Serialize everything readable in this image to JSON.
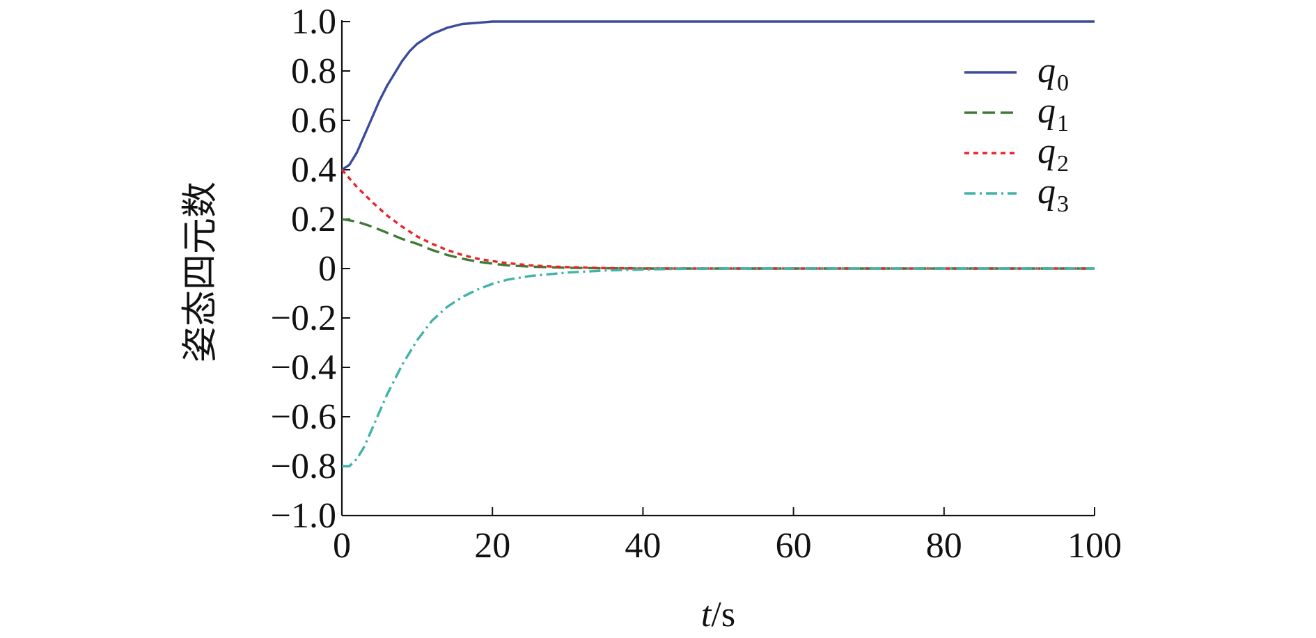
{
  "chart_data": {
    "type": "line",
    "title": "",
    "xlabel_italic": "t",
    "xlabel_rest": "/s",
    "ylabel": "姿态四元数",
    "xlim": [
      0,
      100
    ],
    "ylim": [
      -1.0,
      1.0
    ],
    "x_ticks": [
      0,
      20,
      40,
      60,
      80,
      100
    ],
    "x_tick_labels": [
      "0",
      "20",
      "40",
      "60",
      "80",
      "100"
    ],
    "y_ticks": [
      1.0,
      0.8,
      0.6,
      0.4,
      0.2,
      0,
      -0.2,
      -0.4,
      -0.6,
      -0.8,
      -1.0
    ],
    "y_tick_labels": [
      "1.0",
      "0.8",
      "0.6",
      "0.4",
      "0.2",
      "0",
      "−0.2",
      "−0.4",
      "−0.6",
      "−0.8",
      "−1.0"
    ],
    "grid": false,
    "legend_position": "top-right",
    "series": [
      {
        "name_base": "q",
        "name_sub": "0",
        "color": "#3b4a9a",
        "dash": "solid",
        "x": [
          0,
          1,
          2,
          3,
          4,
          5,
          6,
          7,
          8,
          9,
          10,
          12,
          14,
          16,
          18,
          20,
          25,
          30,
          40,
          50,
          60,
          70,
          80,
          90,
          100
        ],
        "y": [
          0.4,
          0.42,
          0.47,
          0.54,
          0.61,
          0.68,
          0.74,
          0.79,
          0.84,
          0.88,
          0.91,
          0.95,
          0.975,
          0.99,
          0.995,
          1.0,
          1.0,
          1.0,
          1.0,
          1.0,
          1.0,
          1.0,
          1.0,
          1.0,
          1.0
        ]
      },
      {
        "name_base": "q",
        "name_sub": "1",
        "color": "#3f7a35",
        "dash": "long-dash",
        "x": [
          0,
          2,
          4,
          6,
          8,
          10,
          12,
          14,
          16,
          18,
          20,
          22,
          25,
          28,
          30,
          35,
          40,
          50,
          60,
          70,
          80,
          90,
          100
        ],
        "y": [
          0.2,
          0.19,
          0.17,
          0.145,
          0.12,
          0.1,
          0.075,
          0.055,
          0.04,
          0.028,
          0.02,
          0.013,
          0.008,
          0.005,
          0.003,
          0.001,
          0.0,
          0.0,
          0.0,
          0.0,
          0.0,
          0.0,
          0.0
        ]
      },
      {
        "name_base": "q",
        "name_sub": "2",
        "color": "#e8252a",
        "dash": "short-dash",
        "x": [
          0,
          2,
          4,
          6,
          8,
          10,
          12,
          14,
          16,
          18,
          20,
          22,
          25,
          28,
          30,
          35,
          40,
          50,
          60,
          70,
          80,
          90,
          100
        ],
        "y": [
          0.4,
          0.33,
          0.27,
          0.215,
          0.17,
          0.13,
          0.1,
          0.075,
          0.055,
          0.04,
          0.03,
          0.022,
          0.013,
          0.008,
          0.006,
          0.002,
          0.0,
          0.0,
          0.0,
          0.0,
          0.0,
          0.0,
          0.0
        ]
      },
      {
        "name_base": "q",
        "name_sub": "3",
        "color": "#3fb3a8",
        "dash": "dash-dot",
        "x": [
          0,
          1,
          2,
          3,
          4,
          5,
          6,
          7,
          8,
          9,
          10,
          12,
          14,
          16,
          18,
          20,
          22,
          25,
          30,
          35,
          40,
          45,
          50,
          60,
          70,
          80,
          90,
          100
        ],
        "y": [
          -0.8,
          -0.8,
          -0.77,
          -0.72,
          -0.65,
          -0.58,
          -0.51,
          -0.45,
          -0.39,
          -0.34,
          -0.29,
          -0.21,
          -0.155,
          -0.115,
          -0.085,
          -0.062,
          -0.045,
          -0.03,
          -0.016,
          -0.008,
          -0.004,
          -0.001,
          0.0,
          0.0,
          0.0,
          0.0,
          0.0,
          0.0
        ]
      }
    ]
  }
}
